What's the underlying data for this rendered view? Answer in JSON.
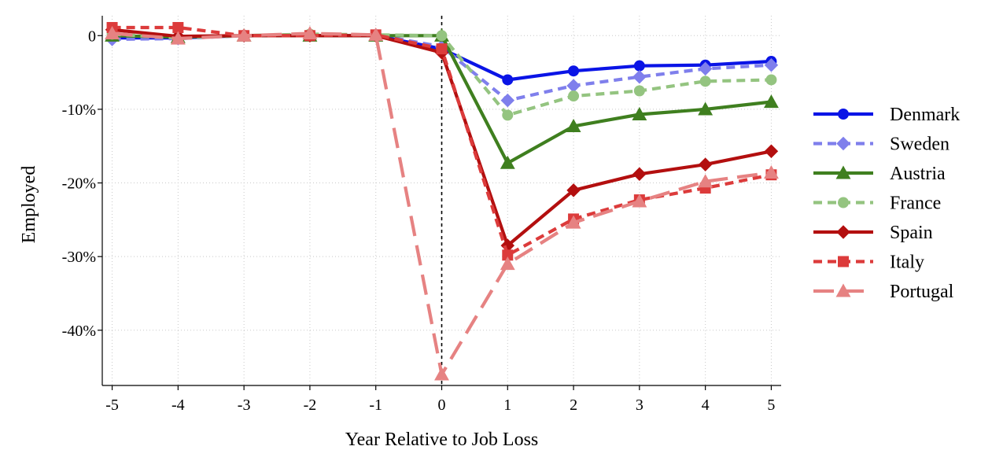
{
  "chart_data": {
    "type": "line",
    "title": "",
    "xlabel": "Year Relative to Job Loss",
    "ylabel": "Employed",
    "x": [
      -5,
      -4,
      -3,
      -2,
      -1,
      0,
      1,
      2,
      3,
      4,
      5
    ],
    "x_ticks": [
      "-5",
      "-4",
      "-3",
      "-2",
      "-1",
      "0",
      "1",
      "2",
      "3",
      "4",
      "5"
    ],
    "y_ticks": [
      {
        "value": 0,
        "label": "0"
      },
      {
        "value": -10,
        "label": "-10%"
      },
      {
        "value": -20,
        "label": "-20%"
      },
      {
        "value": -30,
        "label": "-30%"
      },
      {
        "value": -40,
        "label": "-40%"
      }
    ],
    "xlim": [
      -5.15,
      5.15
    ],
    "ylim": [
      -47.5,
      2.7
    ],
    "grid": true,
    "vertical_reference_line": 0,
    "legend_position": "right",
    "series": [
      {
        "name": "Denmark",
        "color": "#0a14e6",
        "dash": "solid",
        "marker": "circle",
        "values": [
          -0.3,
          -0.3,
          0,
          0,
          0,
          -1.8,
          -6,
          -4.8,
          -4.1,
          -4,
          -3.5
        ]
      },
      {
        "name": "Sweden",
        "color": "#7f7fec",
        "dash": "short",
        "marker": "diamond",
        "values": [
          -0.5,
          -0.4,
          0,
          0.1,
          0.1,
          -1.5,
          -8.8,
          -6.8,
          -5.6,
          -4.5,
          -4
        ]
      },
      {
        "name": "Austria",
        "color": "#3f7f1f",
        "dash": "solid",
        "marker": "triangle",
        "values": [
          0,
          -0.2,
          0,
          0,
          0,
          0,
          -17.3,
          -12.3,
          -10.7,
          -10,
          -9
        ]
      },
      {
        "name": "France",
        "color": "#94c480",
        "dash": "short",
        "marker": "circle",
        "values": [
          0.2,
          -0.3,
          0,
          0.2,
          0.1,
          0,
          -10.8,
          -8.2,
          -7.5,
          -6.2,
          -6
        ]
      },
      {
        "name": "Spain",
        "color": "#b30f0f",
        "dash": "solid",
        "marker": "diamond",
        "values": [
          0.8,
          -0.1,
          0,
          0,
          0,
          -2.3,
          -28.5,
          -21,
          -18.8,
          -17.5,
          -15.7
        ]
      },
      {
        "name": "Italy",
        "color": "#dc3b3b",
        "dash": "short",
        "marker": "square",
        "values": [
          1.1,
          1.1,
          0,
          0,
          0.1,
          -1.8,
          -29.8,
          -24.9,
          -22.3,
          -20.7,
          -18.9
        ]
      },
      {
        "name": "Portugal",
        "color": "#e68282",
        "dash": "long",
        "marker": "triangle",
        "values": [
          0.3,
          -0.4,
          0,
          0.3,
          0.1,
          -46,
          -31,
          -25.4,
          -22.5,
          -19.8,
          -18.6
        ]
      }
    ]
  }
}
